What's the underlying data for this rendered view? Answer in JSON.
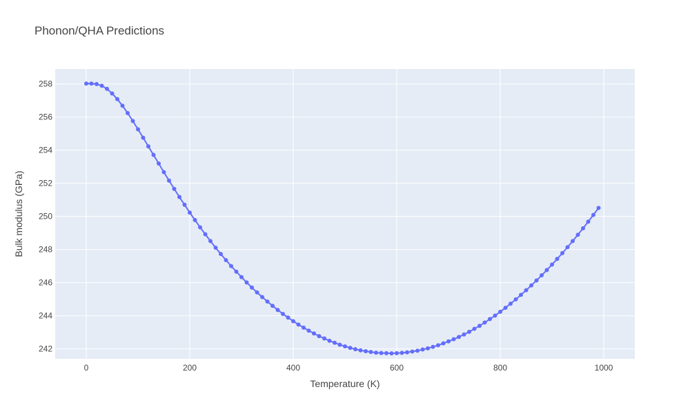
{
  "chart_data": {
    "type": "line",
    "title": "Phonon/QHA Predictions",
    "xlabel": "Temperature (K)",
    "ylabel": "Bulk modulus (GPa)",
    "xlim": [
      -60,
      1060
    ],
    "ylim": [
      241.4,
      258.9
    ],
    "xticks": [
      0,
      200,
      400,
      600,
      800,
      1000
    ],
    "yticks": [
      242,
      244,
      246,
      248,
      250,
      252,
      254,
      256,
      258
    ],
    "grid": true,
    "legend": "none",
    "colors": {
      "plot_background": "#e5ecf6",
      "grid": "#ffffff",
      "series": "#636efa"
    },
    "series": [
      {
        "marker": "circle",
        "x": [
          0,
          10,
          20,
          30,
          40,
          50,
          60,
          70,
          80,
          90,
          100,
          110,
          120,
          130,
          140,
          150,
          160,
          170,
          180,
          190,
          200,
          210,
          220,
          230,
          240,
          250,
          260,
          270,
          280,
          290,
          300,
          310,
          320,
          330,
          340,
          350,
          360,
          370,
          380,
          390,
          400,
          410,
          420,
          430,
          440,
          450,
          460,
          470,
          480,
          490,
          500,
          510,
          520,
          530,
          540,
          550,
          560,
          570,
          580,
          590,
          600,
          610,
          620,
          630,
          640,
          650,
          660,
          670,
          680,
          690,
          700,
          710,
          720,
          730,
          740,
          750,
          760,
          770,
          780,
          790,
          800,
          810,
          820,
          830,
          840,
          850,
          860,
          870,
          880,
          890,
          900,
          910,
          920,
          930,
          940,
          950,
          960,
          970,
          980,
          990
        ],
        "y": [
          258.02,
          258.02,
          257.99,
          257.89,
          257.7,
          257.42,
          257.08,
          256.68,
          256.24,
          255.76,
          255.26,
          254.75,
          254.23,
          253.71,
          253.19,
          252.67,
          252.16,
          251.66,
          251.17,
          250.7,
          250.23,
          249.78,
          249.34,
          248.92,
          248.51,
          248.11,
          247.73,
          247.36,
          247.0,
          246.66,
          246.33,
          246.01,
          245.7,
          245.41,
          245.13,
          244.86,
          244.6,
          244.35,
          244.11,
          243.89,
          243.67,
          243.47,
          243.28,
          243.1,
          242.93,
          242.77,
          242.63,
          242.49,
          242.37,
          242.25,
          242.15,
          242.06,
          241.98,
          241.91,
          241.86,
          241.81,
          241.77,
          241.75,
          241.74,
          241.73,
          241.74,
          241.76,
          241.79,
          241.84,
          241.89,
          241.96,
          242.03,
          242.12,
          242.22,
          242.33,
          242.45,
          242.58,
          242.72,
          242.87,
          243.03,
          243.21,
          243.39,
          243.59,
          243.8,
          244.01,
          244.24,
          244.48,
          244.73,
          244.99,
          245.26,
          245.54,
          245.83,
          246.13,
          246.44,
          246.76,
          247.09,
          247.43,
          247.78,
          248.14,
          248.51,
          248.89,
          249.28,
          249.68,
          250.09,
          250.51
        ]
      }
    ]
  }
}
